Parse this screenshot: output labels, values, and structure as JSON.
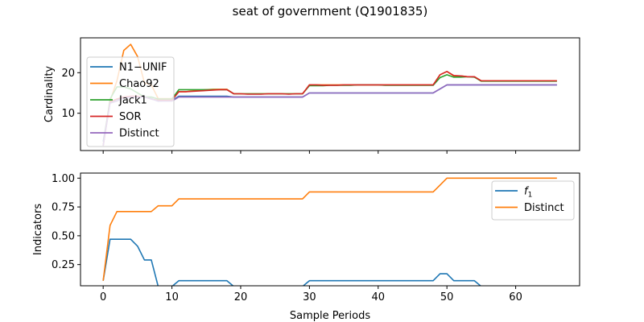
{
  "figure": {
    "suptitle": "seat of government (Q1901835)"
  },
  "chart_data": [
    {
      "type": "line",
      "title": "",
      "xlabel": "",
      "ylabel": "Cardinality",
      "xlim": [
        -3.3,
        69.3
      ],
      "ylim": [
        0.8,
        28.6
      ],
      "yticks": [
        10,
        20
      ],
      "xticks": [
        0,
        10,
        20,
        30,
        40,
        50,
        60
      ],
      "show_xticklabels": false,
      "legend_position": "upper-left",
      "series": [
        {
          "name": "N1−UNIF",
          "color": "#1f77b4",
          "values": [
            3.0,
            12.8,
            13.4,
            13.9,
            14.0,
            14.0,
            14.0,
            13.6,
            13.0,
            13.1,
            13.1,
            14.2,
            14.2,
            14.2,
            14.2,
            14.2,
            14.2,
            14.2,
            14.2,
            14.0,
            14.0,
            14.0,
            14.0,
            14.0,
            14.0,
            14.0,
            14.0,
            14.0,
            14.0,
            14.0,
            15.0,
            15.0,
            15.0,
            15.0,
            15.0,
            15.0,
            15.0,
            15.0,
            15.0,
            15.0,
            15.0,
            15.0,
            15.0,
            15.0,
            15.0,
            15.0,
            15.0,
            15.0,
            15.0,
            16.0,
            17.0,
            17.0,
            17.0,
            17.0,
            17.0,
            17.0,
            17.0,
            17.0,
            17.0,
            17.0,
            17.0,
            17.0,
            17.0,
            17.0,
            17.0,
            17.0,
            17.0
          ]
        },
        {
          "name": "Chao92",
          "color": "#ff7f0e",
          "values": [
            2.0,
            13.0,
            18.0,
            25.5,
            27.0,
            24.0,
            17.5,
            17.0,
            13.6,
            13.6,
            13.6,
            15.3,
            15.3,
            15.5,
            15.7,
            15.8,
            15.9,
            15.9,
            15.9,
            14.8,
            14.8,
            14.8,
            14.8,
            14.8,
            14.8,
            14.8,
            14.8,
            14.8,
            14.8,
            14.8,
            17.0,
            17.0,
            17.0,
            17.0,
            17.0,
            17.0,
            17.0,
            17.0,
            17.0,
            17.0,
            17.0,
            17.0,
            17.0,
            17.0,
            17.0,
            17.0,
            17.0,
            17.0,
            17.0,
            19.5,
            20.3,
            19.2,
            19.2,
            19.0,
            19.0,
            18.0,
            18.0,
            18.0,
            18.0,
            18.0,
            18.0,
            18.0,
            18.0,
            18.0,
            18.0,
            18.0,
            18.0
          ]
        },
        {
          "name": "Jack1",
          "color": "#2ca02c",
          "values": [
            2.0,
            13.5,
            16.5,
            16.5,
            16.0,
            15.0,
            14.0,
            14.0,
            13.5,
            13.5,
            13.5,
            15.8,
            15.8,
            15.8,
            15.8,
            15.8,
            15.8,
            15.8,
            15.8,
            14.8,
            14.8,
            14.8,
            14.8,
            14.8,
            14.8,
            14.8,
            14.8,
            14.8,
            14.8,
            14.8,
            16.8,
            16.8,
            16.8,
            16.9,
            16.9,
            16.9,
            16.9,
            17.0,
            17.0,
            17.0,
            17.0,
            16.9,
            16.9,
            16.9,
            16.9,
            16.9,
            16.9,
            16.9,
            16.9,
            18.8,
            19.5,
            18.9,
            18.9,
            19.0,
            18.9,
            17.9,
            17.9,
            17.9,
            17.9,
            17.9,
            17.9,
            17.9,
            17.9,
            17.9,
            17.9,
            17.9,
            17.9
          ]
        },
        {
          "name": "SOR",
          "color": "#d62728",
          "values": [
            2.0,
            12.8,
            13.5,
            14.0,
            14.2,
            14.2,
            14.0,
            13.5,
            13.2,
            13.2,
            13.2,
            15.3,
            15.3,
            15.4,
            15.5,
            15.6,
            15.7,
            15.8,
            15.8,
            14.8,
            14.8,
            14.7,
            14.7,
            14.7,
            14.8,
            14.8,
            14.8,
            14.7,
            14.8,
            14.8,
            17.0,
            17.0,
            16.9,
            16.9,
            16.9,
            17.0,
            17.0,
            17.0,
            17.0,
            17.0,
            17.0,
            17.0,
            17.0,
            17.0,
            17.0,
            17.0,
            17.0,
            17.0,
            17.0,
            19.5,
            20.3,
            19.3,
            19.2,
            19.0,
            19.0,
            18.0,
            18.0,
            18.0,
            18.0,
            18.0,
            18.0,
            18.0,
            18.0,
            18.0,
            18.0,
            18.0,
            18.0
          ]
        },
        {
          "name": "Distinct",
          "color": "#9467bd",
          "values": [
            2.0,
            12.5,
            13.0,
            13.8,
            14.0,
            14.0,
            14.0,
            13.5,
            13.0,
            13.0,
            13.0,
            14.0,
            14.0,
            14.0,
            14.0,
            14.0,
            14.0,
            14.0,
            14.0,
            14.0,
            14.0,
            14.0,
            14.0,
            14.0,
            14.0,
            14.0,
            14.0,
            14.0,
            14.0,
            14.0,
            15.0,
            15.0,
            15.0,
            15.0,
            15.0,
            15.0,
            15.0,
            15.0,
            15.0,
            15.0,
            15.0,
            15.0,
            15.0,
            15.0,
            15.0,
            15.0,
            15.0,
            15.0,
            15.0,
            16.0,
            17.0,
            17.0,
            17.0,
            17.0,
            17.0,
            17.0,
            17.0,
            17.0,
            17.0,
            17.0,
            17.0,
            17.0,
            17.0,
            17.0,
            17.0,
            17.0,
            17.0
          ]
        }
      ]
    },
    {
      "type": "line",
      "title": "",
      "xlabel": "Sample Periods",
      "ylabel": "Indicators",
      "xlim": [
        -3.3,
        69.3
      ],
      "ylim": [
        0.066,
        1.044
      ],
      "yticks": [
        0.25,
        0.5,
        0.75,
        1.0
      ],
      "ytick_labels": [
        "0.25",
        "0.50",
        "0.75",
        "1.00"
      ],
      "xticks": [
        0,
        10,
        20,
        30,
        40,
        50,
        60
      ],
      "xtick_labels": [
        "0",
        "10",
        "20",
        "30",
        "40",
        "50",
        "60"
      ],
      "legend_position": "upper-right",
      "series": [
        {
          "name": "f1",
          "display_name": "f",
          "display_subscript": "1",
          "color": "#1f77b4",
          "values": [
            0.11,
            0.47,
            0.47,
            0.47,
            0.47,
            0.41,
            0.29,
            0.29,
            0.06,
            0.06,
            0.06,
            0.11,
            0.11,
            0.11,
            0.11,
            0.11,
            0.11,
            0.11,
            0.11,
            0.06,
            0.06,
            0.06,
            0.06,
            0.06,
            0.06,
            0.06,
            0.06,
            0.06,
            0.06,
            0.06,
            0.11,
            0.11,
            0.11,
            0.11,
            0.11,
            0.11,
            0.11,
            0.11,
            0.11,
            0.11,
            0.11,
            0.11,
            0.11,
            0.11,
            0.11,
            0.11,
            0.11,
            0.11,
            0.11,
            0.17,
            0.17,
            0.11,
            0.11,
            0.11,
            0.11,
            0.06,
            0.06,
            0.06,
            0.06,
            0.06,
            0.06,
            0.06,
            0.06,
            0.06,
            0.06,
            0.06,
            0.06
          ]
        },
        {
          "name": "Distinct",
          "color": "#ff7f0e",
          "values": [
            0.11,
            0.59,
            0.71,
            0.71,
            0.71,
            0.71,
            0.71,
            0.71,
            0.76,
            0.76,
            0.76,
            0.82,
            0.82,
            0.82,
            0.82,
            0.82,
            0.82,
            0.82,
            0.82,
            0.82,
            0.82,
            0.82,
            0.82,
            0.82,
            0.82,
            0.82,
            0.82,
            0.82,
            0.82,
            0.82,
            0.88,
            0.88,
            0.88,
            0.88,
            0.88,
            0.88,
            0.88,
            0.88,
            0.88,
            0.88,
            0.88,
            0.88,
            0.88,
            0.88,
            0.88,
            0.88,
            0.88,
            0.88,
            0.88,
            0.94,
            1.0,
            1.0,
            1.0,
            1.0,
            1.0,
            1.0,
            1.0,
            1.0,
            1.0,
            1.0,
            1.0,
            1.0,
            1.0,
            1.0,
            1.0,
            1.0,
            1.0
          ]
        }
      ]
    }
  ]
}
